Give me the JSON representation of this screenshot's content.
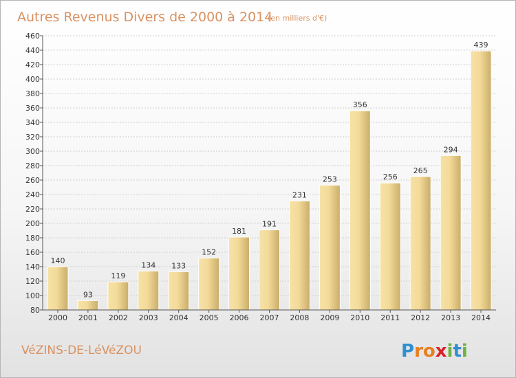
{
  "chart_data": {
    "type": "bar",
    "title": "Autres Revenus Divers de 2000 à 2014",
    "subtitle": "(en milliers d'€)",
    "categories": [
      "2000",
      "2001",
      "2002",
      "2003",
      "2004",
      "2005",
      "2006",
      "2007",
      "2008",
      "2009",
      "2010",
      "2011",
      "2012",
      "2013",
      "2014"
    ],
    "values": [
      140,
      93,
      119,
      134,
      133,
      152,
      181,
      191,
      231,
      253,
      356,
      256,
      265,
      294,
      439
    ],
    "ylim": [
      80,
      460
    ],
    "yticks": [
      80,
      100,
      120,
      140,
      160,
      180,
      200,
      220,
      240,
      260,
      280,
      300,
      320,
      340,
      360,
      380,
      400,
      420,
      440,
      460
    ],
    "grid": true,
    "bar_color": "#e7cd86",
    "title_color": "#d9915f"
  },
  "footer": {
    "town": "VéZINS-DE-LéVéZOU",
    "logo": {
      "text": "Proxiti",
      "letters": [
        "P",
        "r",
        "o",
        "x",
        "i",
        "t",
        "i"
      ],
      "colors": [
        "#2f8fd0",
        "#e97f1e",
        "#e97f1e",
        "#d8232a",
        "#6cb33f",
        "#2f8fd0",
        "#6cb33f"
      ]
    }
  }
}
